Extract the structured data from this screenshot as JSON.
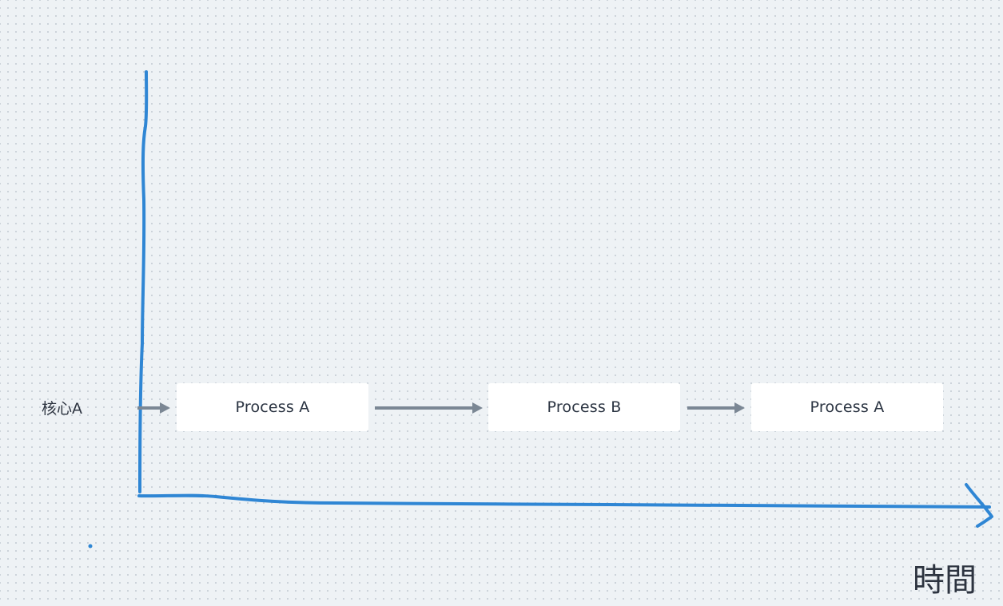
{
  "lane": {
    "label": "核心A"
  },
  "processes": [
    {
      "label": "Process A"
    },
    {
      "label": "Process B"
    },
    {
      "label": "Process A"
    }
  ],
  "x_axis": {
    "label": "時間"
  },
  "colors": {
    "axis_ink": "#2f86d4",
    "arrow": "#7b8794",
    "box_fill": "#ffffff",
    "canvas_bg": "#eef2f5",
    "dot_grid": "#c3cbd3"
  }
}
